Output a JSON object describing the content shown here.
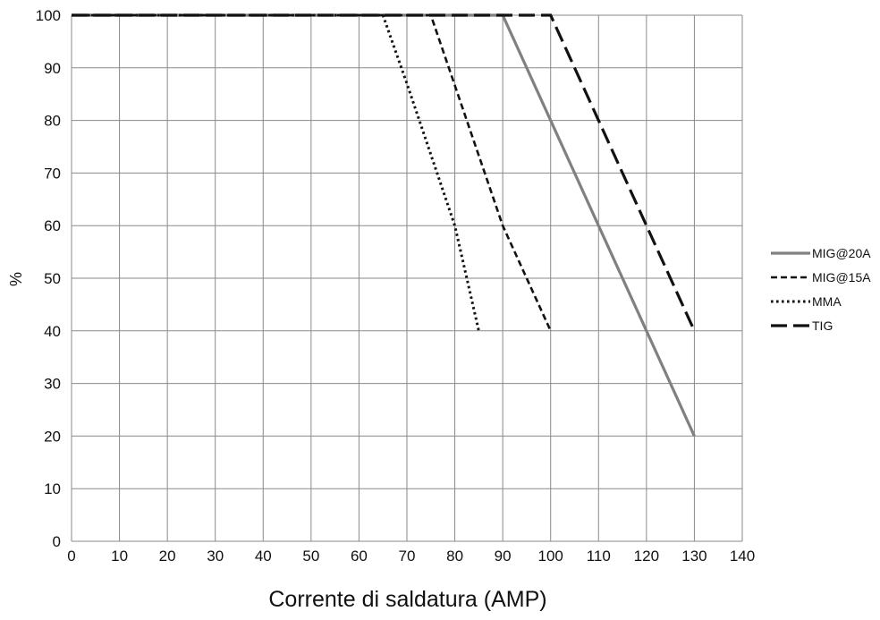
{
  "chart_data": {
    "type": "line",
    "title": "",
    "xlabel": "Corrente di saldatura (AMP)",
    "ylabel": "%",
    "xlim": [
      0,
      140
    ],
    "ylim": [
      0,
      100
    ],
    "x_ticks": [
      "0",
      "10",
      "20",
      "30",
      "40",
      "50",
      "60",
      "70",
      "80",
      "90",
      "100",
      "110",
      "120",
      "130",
      "140"
    ],
    "y_ticks": [
      "0",
      "10",
      "20",
      "30",
      "40",
      "50",
      "60",
      "70",
      "80",
      "90",
      "100"
    ],
    "grid": true,
    "legend_position": "right",
    "series": [
      {
        "name": "MIG@20A",
        "style": "solid",
        "color": "#808080",
        "x": [
          0,
          90,
          130
        ],
        "y": [
          100,
          100,
          20
        ]
      },
      {
        "name": "MIG@15A",
        "style": "dashed",
        "color": "#111111",
        "x": [
          0,
          75,
          90,
          100
        ],
        "y": [
          100,
          100,
          60,
          40
        ]
      },
      {
        "name": "MMA",
        "style": "dotted",
        "color": "#111111",
        "x": [
          0,
          65,
          70,
          80,
          85
        ],
        "y": [
          100,
          100,
          87,
          60,
          40
        ]
      },
      {
        "name": "TIG",
        "style": "longdash",
        "color": "#111111",
        "x": [
          0,
          100,
          110,
          120,
          130
        ],
        "y": [
          100,
          100,
          80,
          60,
          40
        ]
      }
    ]
  }
}
